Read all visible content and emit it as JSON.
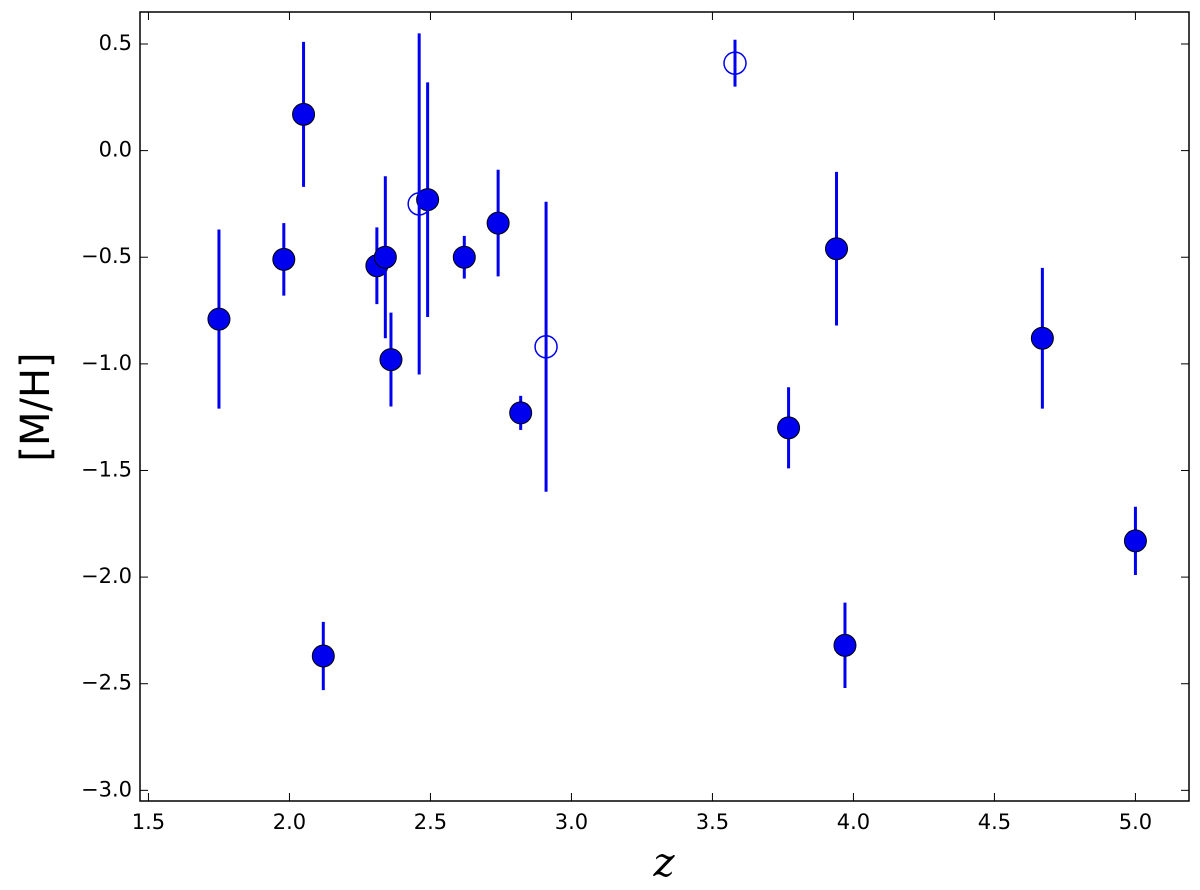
{
  "chart_data": {
    "type": "scatter",
    "x_label": "z",
    "y_label": "[M/H]",
    "xlim": [
      1.47,
      5.19
    ],
    "ylim": [
      -3.05,
      0.65
    ],
    "xticks": [
      {
        "value": 1.5,
        "label": "1.5"
      },
      {
        "value": 2.0,
        "label": "2.0"
      },
      {
        "value": 2.5,
        "label": "2.5"
      },
      {
        "value": 3.0,
        "label": "3.0"
      },
      {
        "value": 3.5,
        "label": "3.5"
      },
      {
        "value": 4.0,
        "label": "4.0"
      },
      {
        "value": 4.5,
        "label": "4.5"
      },
      {
        "value": 5.0,
        "label": "5.0"
      }
    ],
    "yticks": [
      {
        "value": 0.5,
        "label": "0.5"
      },
      {
        "value": 0.0,
        "label": "0.0"
      },
      {
        "value": -0.5,
        "label": "−0.5"
      },
      {
        "value": -1.0,
        "label": "−1.0"
      },
      {
        "value": -1.5,
        "label": "−1.5"
      },
      {
        "value": -2.0,
        "label": "−2.0"
      },
      {
        "value": -2.5,
        "label": "−2.5"
      },
      {
        "value": -3.0,
        "label": "−3.0"
      }
    ],
    "series": [
      {
        "color": "#0000ee",
        "marker": "filled",
        "x": [
          1.75,
          1.98,
          2.05,
          2.12,
          2.31,
          2.34,
          2.36,
          2.49,
          2.62,
          2.74,
          2.82,
          3.77,
          3.94,
          3.97,
          4.67,
          5.0
        ],
        "values": [
          -0.79,
          -0.51,
          0.17,
          -2.37,
          -0.54,
          -0.5,
          -0.98,
          -0.23,
          -0.5,
          -0.34,
          -1.23,
          -1.3,
          -0.46,
          -2.32,
          -0.88,
          -1.83
        ],
        "errors": [
          0.42,
          0.17,
          0.34,
          0.16,
          0.18,
          0.38,
          0.22,
          0.55,
          0.1,
          0.25,
          0.08,
          0.19,
          0.36,
          0.2,
          0.33,
          0.16
        ]
      },
      {
        "color": "#0000ee",
        "marker": "open",
        "x": [
          2.46,
          2.91,
          3.58
        ],
        "values": [
          -0.25,
          -0.92,
          0.41
        ],
        "errors": [
          0.8,
          0.68,
          0.11
        ]
      }
    ]
  }
}
